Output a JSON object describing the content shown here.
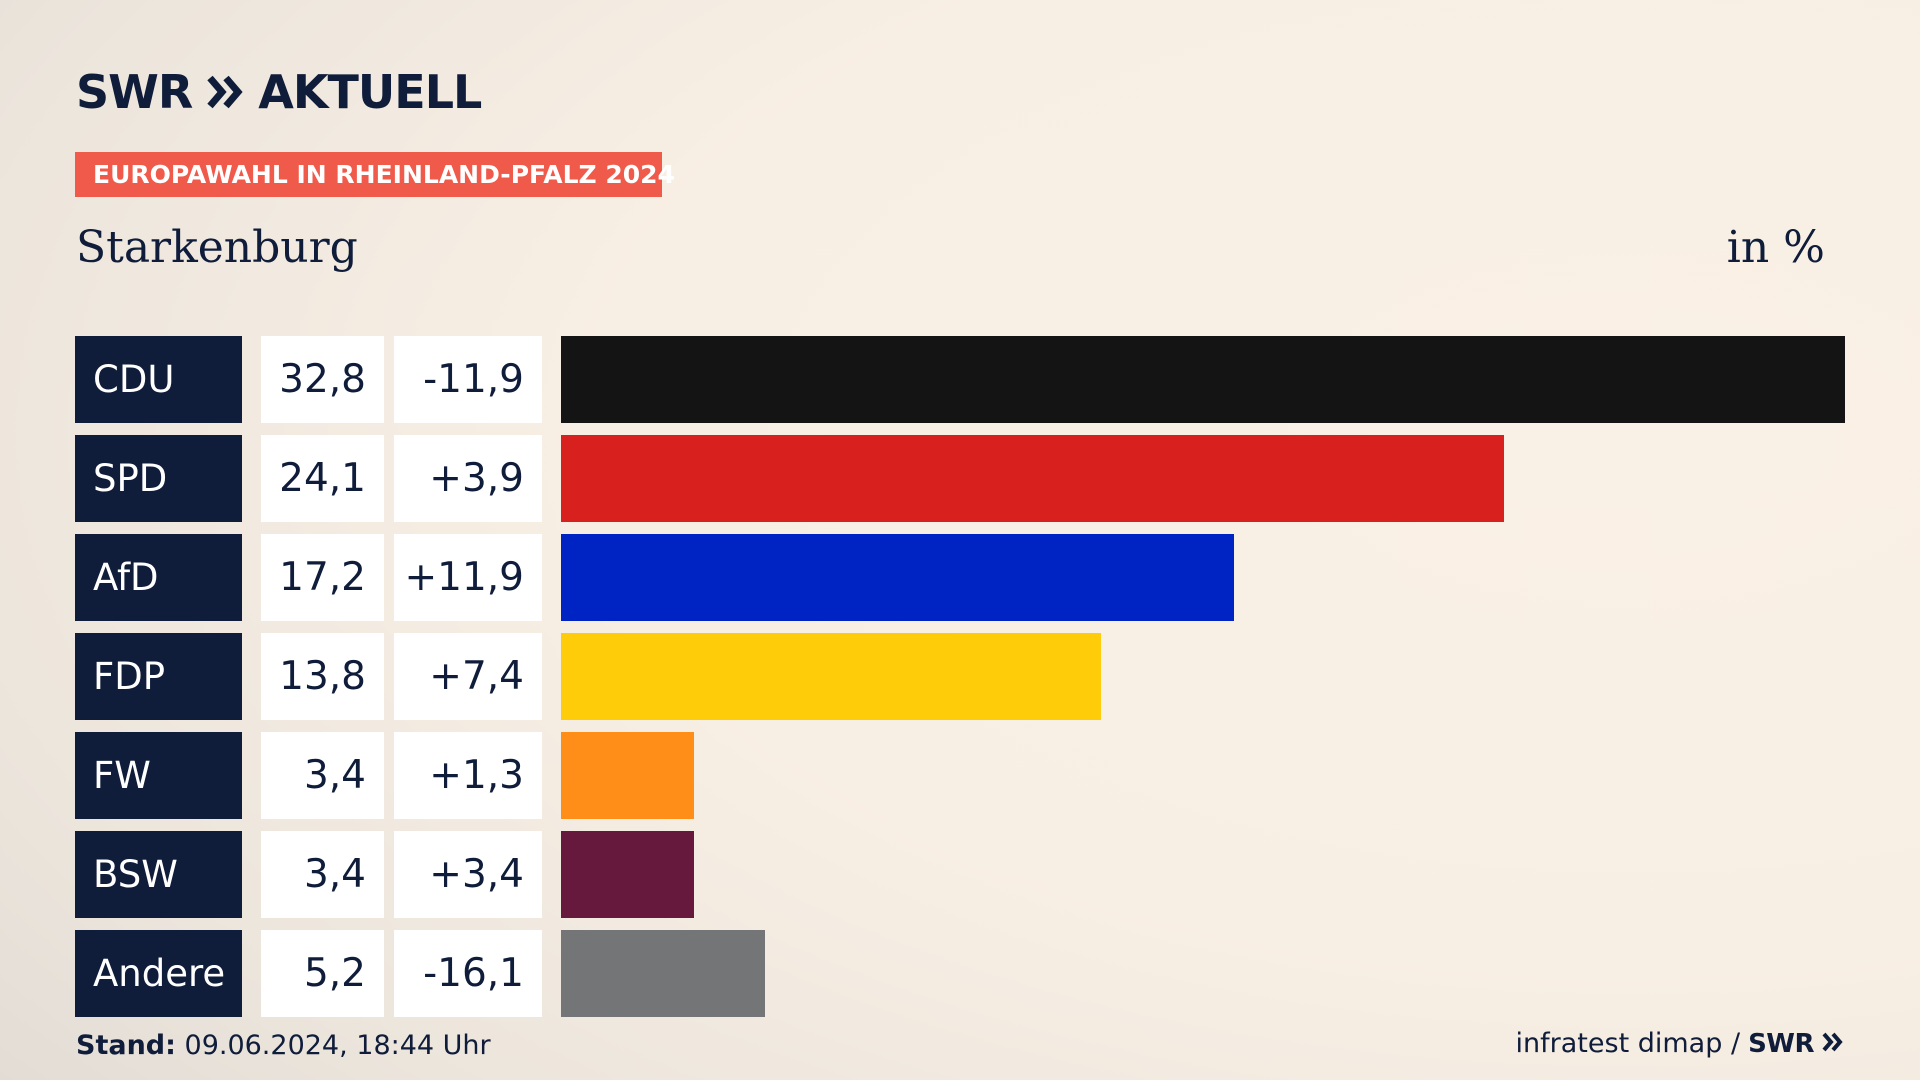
{
  "header": {
    "logo_brand": "SWR",
    "logo_title": "AKTUELL",
    "banner": "EUROPAWAHL IN RHEINLAND-PFALZ 2024",
    "region": "Starkenburg",
    "unit": "in %"
  },
  "footer": {
    "stand_label": "Stand:",
    "stand_value": "09.06.2024, 18:44 Uhr",
    "source": "infratest dimap /",
    "source_brand": "SWR"
  },
  "colors": {
    "navy": "#0f1c3a",
    "banner": "#f05a4a"
  },
  "chart_data": {
    "type": "bar",
    "orientation": "horizontal",
    "categories": [
      "CDU",
      "SPD",
      "AfD",
      "FDP",
      "FW",
      "BSW",
      "Andere"
    ],
    "values": [
      32.8,
      24.1,
      17.2,
      13.8,
      3.4,
      3.4,
      5.2
    ],
    "value_labels": [
      "32,8",
      "24,1",
      "17,2",
      "13,8",
      "3,4",
      "3,4",
      "5,2"
    ],
    "diff_labels": [
      "-11,9",
      "+3,9",
      "+11,9",
      "+7,4",
      "+1,3",
      "+3,4",
      "-16,1"
    ],
    "colors": [
      "#141414",
      "#d8201f",
      "#0023c4",
      "#ffcc0a",
      "#ff8e18",
      "#66193c",
      "#737577"
    ],
    "xlim": [
      0,
      32.8
    ]
  }
}
